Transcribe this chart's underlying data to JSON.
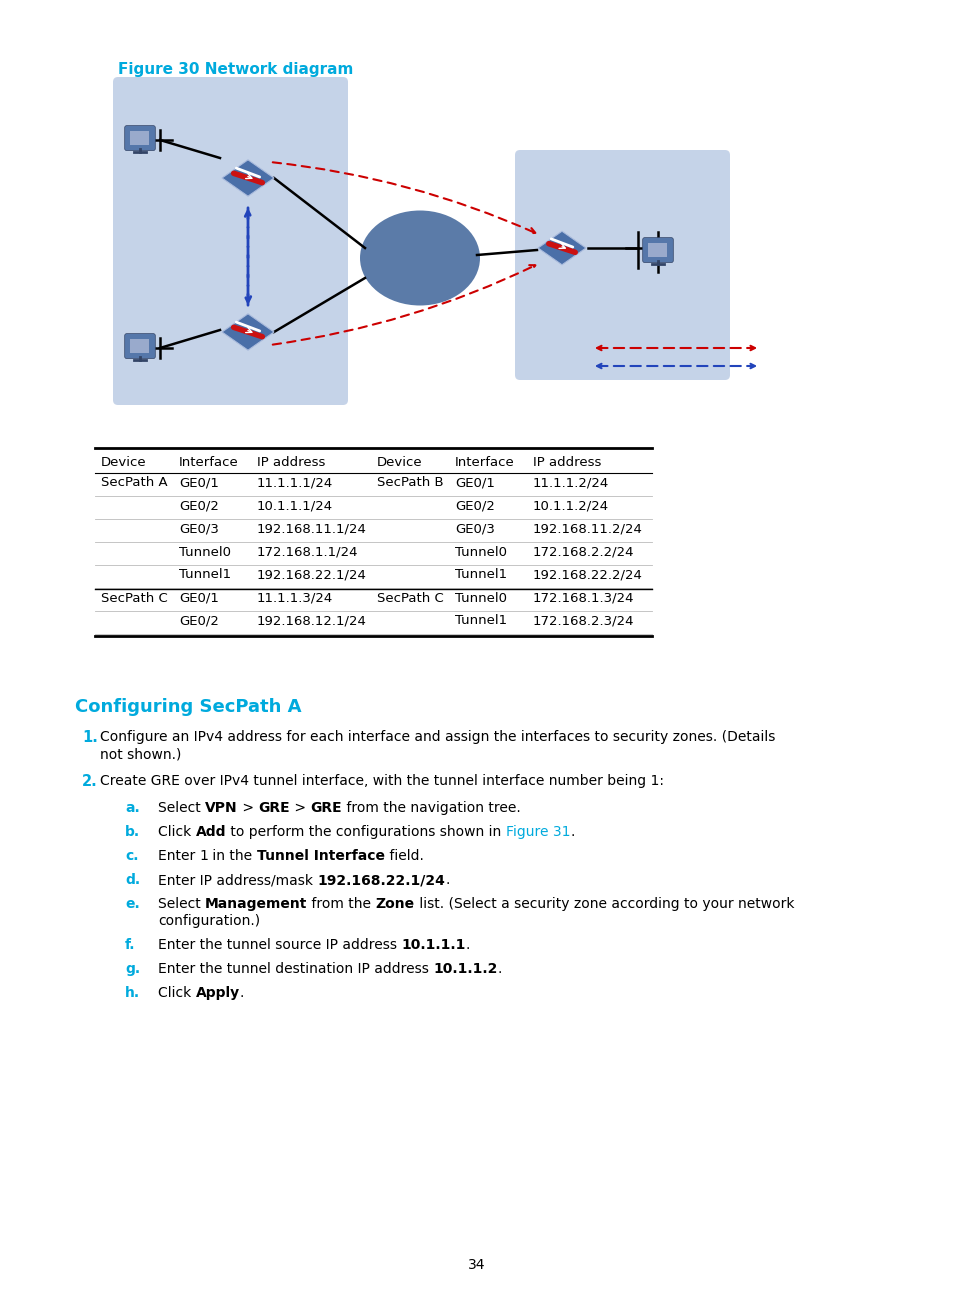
{
  "title": "Figure 30 Network diagram",
  "title_color": "#00AADD",
  "section_title": "Configuring SecPath A",
  "section_title_color": "#00AADD",
  "bg_color": "#FFFFFF",
  "table_headers": [
    "Device",
    "Interface",
    "IP address",
    "Device",
    "Interface",
    "IP address"
  ],
  "table_rows": [
    [
      "SecPath A",
      "GE0/1",
      "11.1.1.1/24",
      "SecPath B",
      "GE0/1",
      "11.1.1.2/24"
    ],
    [
      "",
      "GE0/2",
      "10.1.1.1/24",
      "",
      "GE0/2",
      "10.1.1.2/24"
    ],
    [
      "",
      "GE0/3",
      "192.168.11.1/24",
      "",
      "GE0/3",
      "192.168.11.2/24"
    ],
    [
      "",
      "Tunnel0",
      "172.168.1.1/24",
      "",
      "Tunnel0",
      "172.168.2.2/24"
    ],
    [
      "",
      "Tunnel1",
      "192.168.22.1/24",
      "",
      "Tunnel1",
      "192.168.22.2/24"
    ],
    [
      "SecPath C",
      "GE0/1",
      "11.1.1.3/24",
      "SecPath C",
      "Tunnel0",
      "172.168.1.3/24"
    ],
    [
      "",
      "GE0/2",
      "192.168.12.1/24",
      "",
      "Tunnel1",
      "172.168.2.3/24"
    ]
  ],
  "numbered_items": [
    [
      "1",
      "Configure an IPv4 address for each interface and assign the interfaces to security zones. (Details\nnot shown.)"
    ],
    [
      "2",
      "Create GRE over IPv4 tunnel interface, with the tunnel interface number being 1:"
    ]
  ],
  "lettered_items": [
    [
      "a",
      [
        [
          "Select ",
          false
        ],
        [
          "VPN",
          true
        ],
        [
          " > ",
          false
        ],
        [
          "GRE",
          true
        ],
        [
          " > ",
          false
        ],
        [
          "GRE",
          true
        ],
        [
          " from the navigation tree.",
          false
        ]
      ]
    ],
    [
      "b",
      [
        [
          "Click ",
          false
        ],
        [
          "Add",
          true
        ],
        [
          " to perform the configurations shown in ",
          false
        ],
        [
          "Figure 31",
          "cyan"
        ],
        [
          ".",
          false
        ]
      ]
    ],
    [
      "c",
      [
        [
          "Enter ",
          false
        ],
        [
          "1",
          false
        ],
        [
          " in the ",
          false
        ],
        [
          "Tunnel Interface",
          true
        ],
        [
          " field.",
          false
        ]
      ]
    ],
    [
      "d",
      [
        [
          "Enter IP address/mask ",
          false
        ],
        [
          "192.168.22.1/24",
          true
        ],
        [
          ".",
          false
        ]
      ]
    ],
    [
      "e",
      [
        [
          "Select ",
          false
        ],
        [
          "Management",
          true
        ],
        [
          " from the ",
          false
        ],
        [
          "Zone",
          true
        ],
        [
          " list. (Select a security zone according to your network",
          false
        ]
      ],
      "configuration.)"
    ],
    [
      "f",
      [
        [
          "Enter the tunnel source IP address ",
          false
        ],
        [
          "10.1.1.1",
          true
        ],
        [
          ".",
          false
        ]
      ]
    ],
    [
      "g",
      [
        [
          "Enter the tunnel destination IP address ",
          false
        ],
        [
          "10.1.1.2",
          true
        ],
        [
          ".",
          false
        ]
      ]
    ],
    [
      "h",
      [
        [
          "Click ",
          false
        ],
        [
          "Apply",
          true
        ],
        [
          ".",
          false
        ]
      ]
    ]
  ],
  "page_number": "34",
  "panel_left_color": "#C5D3E8",
  "panel_right_color": "#C5D3E8",
  "cloud_color": "#5B7BA8",
  "legend_red_color": "#CC0000",
  "legend_blue_color": "#2244BB"
}
